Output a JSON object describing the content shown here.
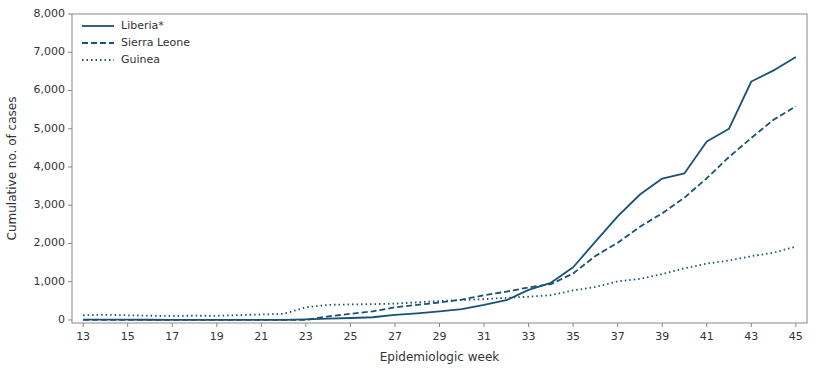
{
  "chart_data": {
    "type": "line",
    "xlabel": "Epidemiologic week",
    "ylabel": "Cumulative no. of cases",
    "color": "#1a5276",
    "x": [
      13,
      14,
      15,
      16,
      17,
      18,
      19,
      20,
      21,
      22,
      23,
      24,
      25,
      26,
      27,
      28,
      29,
      30,
      31,
      32,
      33,
      34,
      35,
      36,
      37,
      38,
      39,
      40,
      41,
      42,
      43,
      44,
      45
    ],
    "series": [
      {
        "name": "Liberia*",
        "line_style": "solid",
        "values": [
          8,
          7,
          6,
          5,
          4,
          3,
          3,
          3,
          3,
          3,
          16,
          34,
          51,
          70,
          131,
          173,
          225,
          282,
          391,
          516,
          786,
          972,
          1378,
          2046,
          2710,
          3280,
          3696,
          3834,
          4665,
          5000,
          6235,
          6525,
          6878
        ]
      },
      {
        "name": "Sierra Leone",
        "line_style": "dashed",
        "values": [
          0,
          0,
          0,
          0,
          0,
          0,
          0,
          0,
          0,
          0,
          0,
          92,
          158,
          224,
          330,
          394,
          455,
          533,
          646,
          739,
          850,
          935,
          1216,
          1673,
          2021,
          2437,
          2789,
          3199,
          3706,
          4262,
          4759,
          5235,
          5586
        ]
      },
      {
        "name": "Guinea",
        "line_style": "dotted",
        "values": [
          122,
          136,
          122,
          110,
          106,
          111,
          108,
          127,
          143,
          159,
          330,
          394,
          406,
          413,
          427,
          460,
          495,
          519,
          543,
          579,
          607,
          648,
          771,
          862,
          1008,
          1074,
          1199,
          1350,
          1472,
          1553,
          1667,
          1760,
          1919
        ]
      }
    ],
    "xlim": [
      12.5,
      45.5
    ],
    "ylim": [
      -80,
      8000
    ],
    "xticks": [
      13,
      15,
      17,
      19,
      21,
      23,
      25,
      27,
      29,
      31,
      33,
      35,
      37,
      39,
      41,
      43,
      45
    ],
    "yticks": [
      0,
      {
        "value": 1000,
        "label": "1,000"
      },
      {
        "value": 2000,
        "label": "2,000"
      },
      {
        "value": 3000,
        "label": "3,000"
      },
      {
        "value": 4000,
        "label": "4,000"
      },
      {
        "value": 5000,
        "label": "5,000"
      },
      {
        "value": 6000,
        "label": "6,000"
      },
      {
        "value": 7000,
        "label": "7,000"
      },
      {
        "value": 8000,
        "label": "8,000"
      }
    ],
    "grid": false,
    "legend": "upper left"
  }
}
